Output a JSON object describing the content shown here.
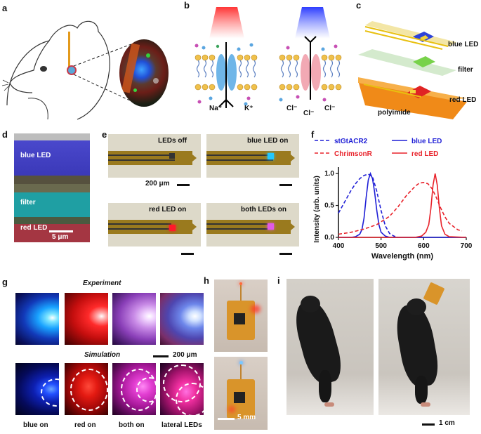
{
  "panels": {
    "a": "a",
    "b": "b",
    "c": "c",
    "d": "d",
    "e": "e",
    "f": "f",
    "g": "g",
    "h": "h",
    "i": "i"
  },
  "b": {
    "ions_left": [
      "Na⁺",
      "K⁺"
    ],
    "ions_right": [
      "Cl⁻",
      "Cl⁻",
      "Cl⁻"
    ]
  },
  "c": {
    "blue_led": "blue LED",
    "filter": "filter",
    "red_led": "red LED",
    "polyimide": "polyimide"
  },
  "d": {
    "blue_led": "blue LED",
    "filter": "filter",
    "red_led": "red LED",
    "scale": "5 μm"
  },
  "e": {
    "tiles": [
      "LEDs off",
      "blue LED on",
      "red LED on",
      "both LEDs on"
    ],
    "scale": "200 μm"
  },
  "g": {
    "experiment": "Experiment",
    "simulation": "Simulation",
    "scale": "200 μm",
    "captions": [
      "blue on",
      "red on",
      "both on",
      "lateral LEDs"
    ]
  },
  "h": {
    "scale": "5 mm"
  },
  "i": {
    "scale": "1 cm"
  },
  "colors": {
    "blue": "#2b3bd6",
    "red": "#e8222a",
    "gold": "#f0a418",
    "teal": "#1f9fa3"
  },
  "chart_data": {
    "type": "line",
    "xlabel": "Wavelength (nm)",
    "ylabel": "Intensity (arb. units)",
    "xlim": [
      400,
      700
    ],
    "ylim": [
      0,
      1.1
    ],
    "xticks": [
      400,
      500,
      600,
      700
    ],
    "yticks": [
      0.0,
      0.5,
      1.0
    ],
    "legend_position": "top",
    "series": [
      {
        "name": "stGtACR2",
        "color": "#1f1fd6",
        "dash": true,
        "x": [
          400,
          410,
          420,
          430,
          440,
          450,
          460,
          470,
          480,
          490,
          500,
          510,
          520,
          530,
          540
        ],
        "y": [
          0.38,
          0.5,
          0.62,
          0.74,
          0.84,
          0.92,
          0.97,
          0.99,
          0.95,
          0.72,
          0.42,
          0.18,
          0.06,
          0.02,
          0.0
        ]
      },
      {
        "name": "blue LED",
        "color": "#1f1fd6",
        "dash": false,
        "x": [
          400,
          430,
          440,
          450,
          455,
          460,
          465,
          470,
          475,
          480,
          485,
          490,
          495,
          500,
          510,
          520,
          700
        ],
        "y": [
          0.0,
          0.0,
          0.01,
          0.05,
          0.12,
          0.3,
          0.62,
          0.9,
          1.0,
          0.92,
          0.7,
          0.42,
          0.2,
          0.08,
          0.02,
          0.0,
          0.0
        ]
      },
      {
        "name": "ChrimsonR",
        "color": "#e8222a",
        "dash": true,
        "x": [
          400,
          430,
          460,
          490,
          520,
          540,
          560,
          580,
          590,
          600,
          610,
          620,
          630,
          640,
          650,
          660,
          680,
          690
        ],
        "y": [
          0.05,
          0.08,
          0.13,
          0.2,
          0.33,
          0.48,
          0.66,
          0.8,
          0.85,
          0.86,
          0.84,
          0.76,
          0.62,
          0.46,
          0.32,
          0.22,
          0.12,
          0.1
        ]
      },
      {
        "name": "red LED",
        "color": "#e8222a",
        "dash": false,
        "x": [
          400,
          580,
          595,
          605,
          612,
          617,
          622,
          627,
          632,
          637,
          642,
          650,
          660,
          700
        ],
        "y": [
          0.0,
          0.0,
          0.02,
          0.08,
          0.2,
          0.45,
          0.82,
          1.0,
          0.82,
          0.45,
          0.18,
          0.05,
          0.01,
          0.0
        ]
      }
    ]
  }
}
